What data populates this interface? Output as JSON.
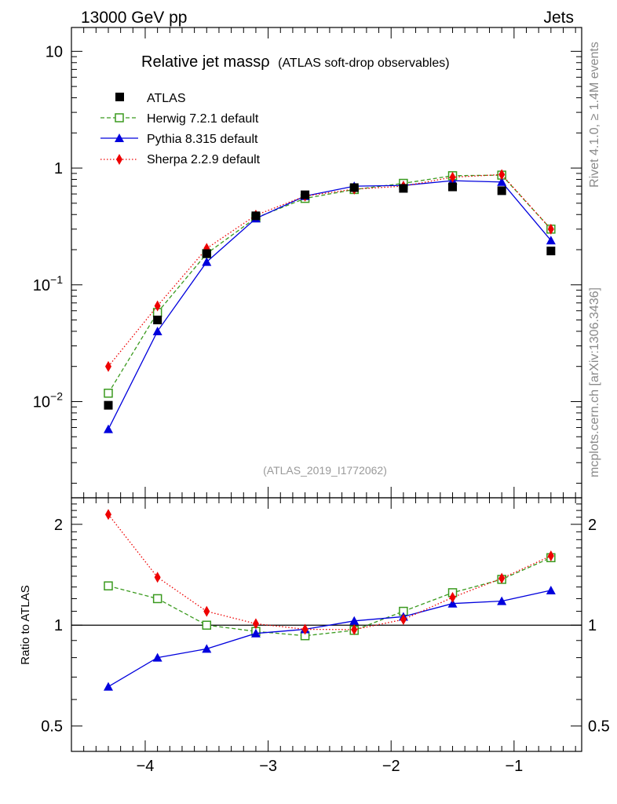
{
  "header": {
    "energy_label": "13000 GeV pp",
    "process_label": "Jets"
  },
  "side": {
    "rivet_label": "Rivet 4.1.0, ≥ 1.4M events",
    "source_label": "mcplots.cern.ch [arXiv:1306.3436]"
  },
  "chart_data": [
    {
      "type": "line",
      "panel": "main",
      "title": "Relative jet massρ",
      "subtitle": "(ATLAS soft-drop observables)",
      "watermark": "(ATLAS_2019_I1772062)",
      "yscale": "log",
      "xlim": [
        -4.6,
        -0.45
      ],
      "ylim": [
        0.0015,
        16
      ],
      "ytick_labels": [
        {
          "value": 10,
          "mant": "10",
          "exp": ""
        },
        {
          "value": 1,
          "mant": "1",
          "exp": ""
        },
        {
          "value": 0.1,
          "mant": "10",
          "exp": "−1"
        },
        {
          "value": 0.01,
          "mant": "10",
          "exp": "−2"
        }
      ],
      "x": [
        -4.3,
        -3.9,
        -3.5,
        -3.1,
        -2.7,
        -2.3,
        -1.9,
        -1.5,
        -1.1,
        -0.7
      ],
      "series": [
        {
          "name": "ATLAS",
          "key": "atlas",
          "color": "#000000",
          "marker": "square-filled",
          "line": "none",
          "values": [
            0.0093,
            0.05,
            0.185,
            0.39,
            0.59,
            0.68,
            0.67,
            0.69,
            0.64,
            0.195
          ]
        },
        {
          "name": "Herwig 7.2.1 default",
          "key": "herwig",
          "color": "#3a9a1e",
          "marker": "square-open",
          "line": "dashed",
          "values": [
            0.0118,
            0.058,
            0.185,
            0.375,
            0.55,
            0.655,
            0.74,
            0.86,
            0.87,
            0.3
          ]
        },
        {
          "name": "Pythia 8.315 default",
          "key": "pythia",
          "color": "#0000dd",
          "marker": "triangle",
          "line": "solid",
          "values": [
            0.0058,
            0.04,
            0.157,
            0.37,
            0.575,
            0.7,
            0.71,
            0.78,
            0.76,
            0.24
          ]
        },
        {
          "name": "Sherpa 2.2.9 default",
          "key": "sherpa",
          "color": "#ee0000",
          "marker": "diamond",
          "line": "dotted",
          "values": [
            0.02,
            0.066,
            0.205,
            0.395,
            0.575,
            0.66,
            0.7,
            0.835,
            0.88,
            0.3
          ]
        }
      ]
    },
    {
      "type": "line",
      "panel": "ratio",
      "ylabel": "Ratio to ATLAS",
      "yscale": "log",
      "ylim": [
        0.42,
        2.4
      ],
      "yticks": [
        0.5,
        1,
        2
      ],
      "ytick_labels": [
        "0.5",
        "1",
        "2"
      ],
      "reference_line": 1,
      "xlim": [
        -4.6,
        -0.45
      ],
      "xticks": [
        -4,
        -3,
        -2,
        -1
      ],
      "xtick_labels": [
        "−4",
        "−3",
        "−2",
        "−1"
      ],
      "x": [
        -4.3,
        -3.9,
        -3.5,
        -3.1,
        -2.7,
        -2.3,
        -1.9,
        -1.5,
        -1.1,
        -0.7
      ],
      "series": [
        {
          "name": "Herwig 7.2.1 default",
          "key": "herwig",
          "color": "#3a9a1e",
          "marker": "square-open",
          "line": "dashed",
          "values": [
            1.31,
            1.2,
            1.0,
            0.958,
            0.93,
            0.965,
            1.1,
            1.25,
            1.37,
            1.59
          ]
        },
        {
          "name": "Pythia 8.315 default",
          "key": "pythia",
          "color": "#0000dd",
          "marker": "triangle",
          "line": "solid",
          "values": [
            0.655,
            0.8,
            0.85,
            0.945,
            0.972,
            1.03,
            1.06,
            1.16,
            1.18,
            1.27
          ]
        },
        {
          "name": "Sherpa 2.2.9 default",
          "key": "sherpa",
          "color": "#ee0000",
          "marker": "diamond",
          "line": "dotted",
          "values": [
            2.14,
            1.39,
            1.1,
            1.01,
            0.972,
            0.97,
            1.04,
            1.21,
            1.38,
            1.61
          ]
        }
      ]
    }
  ]
}
